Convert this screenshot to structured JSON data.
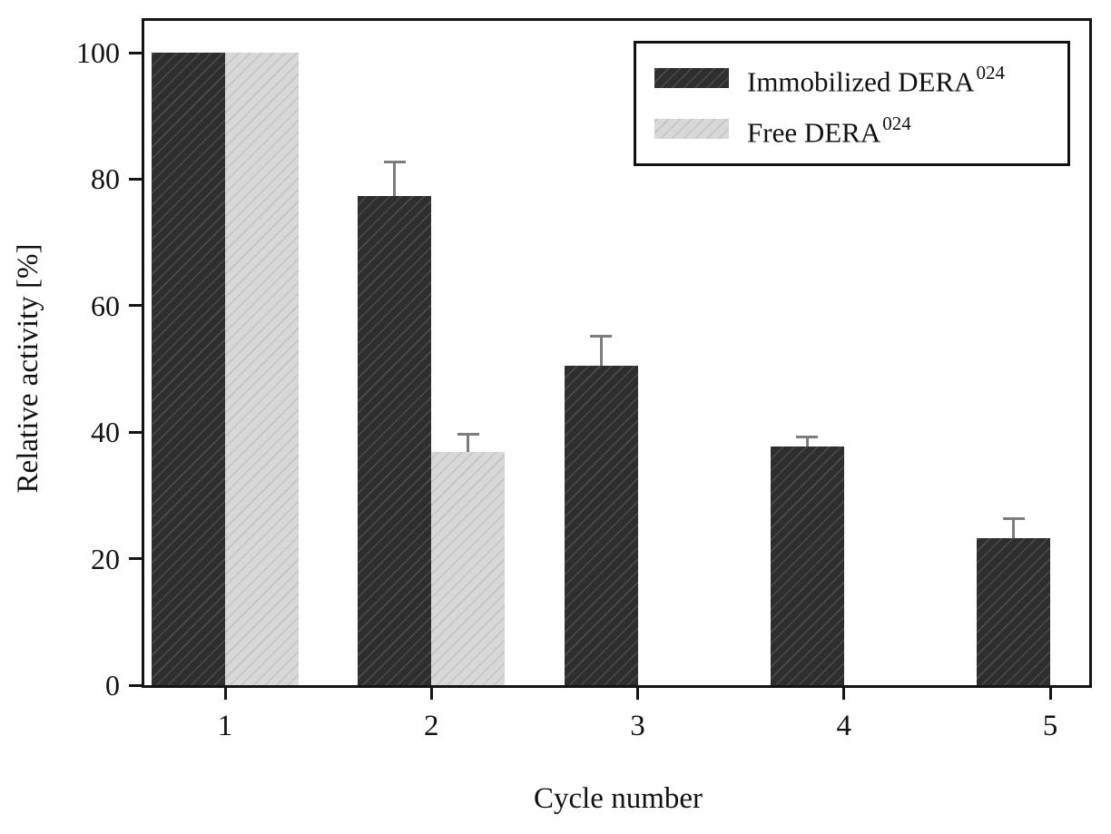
{
  "chart_data": {
    "type": "bar",
    "title": "",
    "xlabel": "Cycle number",
    "ylabel": "Relative activity [%]",
    "categories": [
      "1",
      "2",
      "3",
      "4",
      "5"
    ],
    "y_ticks": [
      0,
      20,
      40,
      60,
      80,
      100
    ],
    "ylim": [
      0,
      100
    ],
    "grid": false,
    "axis_color": "#141414",
    "error_bar_color": "#7d7d7d",
    "legend": {
      "position": "top-right",
      "entries": [
        {
          "label_base": "Immobilized DERA",
          "label_sup": "024",
          "swatch": "dark-hatched"
        },
        {
          "label_base": "Free DERA",
          "label_sup": "024",
          "swatch": "light-hatched"
        }
      ]
    },
    "series": [
      {
        "name": "Immobilized DERA024",
        "fill": "#2e2e2e",
        "hatch": "#4c4c4c",
        "values": [
          100,
          77.4,
          50.5,
          37.7,
          23.3
        ],
        "errors_plus": [
          0,
          5.3,
          4.6,
          1.6,
          3.0
        ]
      },
      {
        "name": "Free DERA024",
        "fill": "#d8d8d8",
        "hatch": "#c2c2c2",
        "values": [
          100,
          36.9,
          null,
          null,
          null
        ],
        "errors_plus": [
          0,
          2.7,
          null,
          null,
          null
        ]
      }
    ]
  }
}
